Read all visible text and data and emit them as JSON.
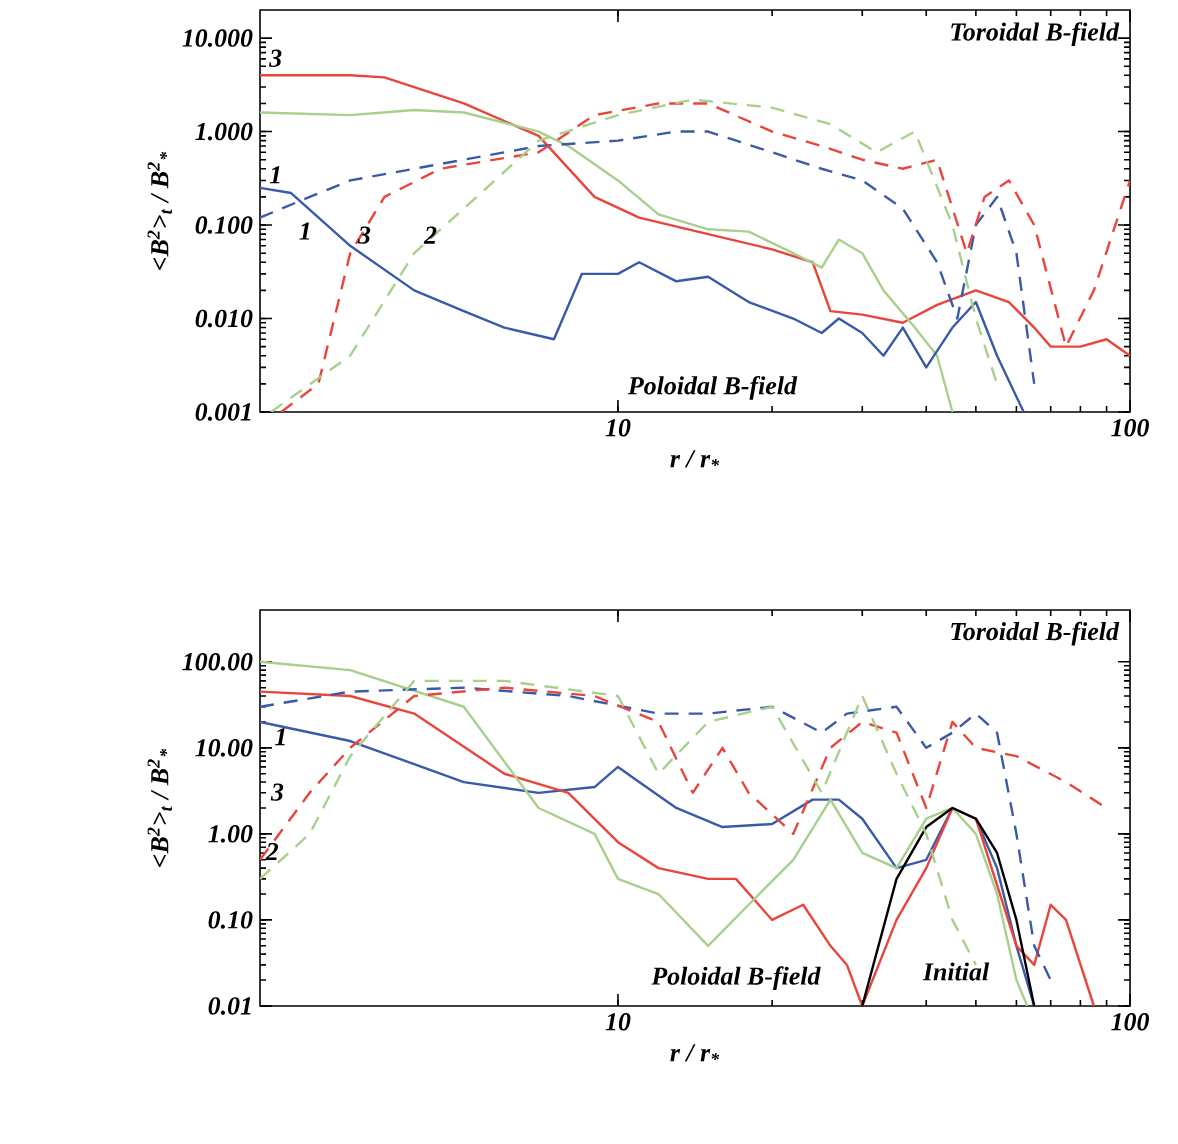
{
  "chart_data": [
    {
      "type": "line",
      "xlabel": "r / r$_{*}$",
      "ylabel": "<B$^{2}$>$_{t}$ / B$^{2}$$_{*}$",
      "log": "xy",
      "xlim": [
        2,
        100
      ],
      "ylim": [
        0.001,
        20
      ],
      "xticks": [
        10,
        100
      ],
      "yticks": [
        {
          "value": 0.001,
          "label": "0.001"
        },
        {
          "value": 0.01,
          "label": "0.010"
        },
        {
          "value": 0.1,
          "label": "0.100"
        },
        {
          "value": 1,
          "label": "1.000"
        },
        {
          "value": 10,
          "label": "10.000"
        }
      ],
      "series": [
        {
          "color": "#e8453c",
          "line_style": "solid",
          "x": [
            2,
            3,
            3.5,
            5,
            7,
            9,
            11,
            15,
            20,
            24,
            26,
            30,
            36,
            42,
            50,
            58,
            65,
            70,
            80,
            90,
            100
          ],
          "values": [
            4,
            4,
            3.8,
            2,
            0.9,
            0.2,
            0.12,
            0.08,
            0.055,
            0.04,
            0.012,
            0.011,
            0.009,
            0.014,
            0.02,
            0.015,
            0.008,
            0.005,
            0.005,
            0.006,
            0.004
          ]
        },
        {
          "color": "#a8d08d",
          "line_style": "solid",
          "x": [
            2,
            3,
            4,
            5,
            7,
            8,
            10,
            12,
            15,
            18,
            22,
            25,
            27,
            30,
            33,
            38,
            42,
            45
          ],
          "values": [
            1.6,
            1.5,
            1.7,
            1.6,
            1.0,
            0.7,
            0.3,
            0.13,
            0.09,
            0.085,
            0.05,
            0.035,
            0.07,
            0.05,
            0.02,
            0.008,
            0.004,
            0.001
          ]
        },
        {
          "color": "#3a5aa8",
          "line_style": "solid",
          "x": [
            2,
            2.3,
            3,
            4,
            5,
            6,
            7.5,
            8.5,
            10,
            11,
            13,
            15,
            18,
            22,
            25,
            27,
            30,
            33,
            36,
            40,
            45,
            50,
            55,
            62
          ],
          "values": [
            0.25,
            0.22,
            0.06,
            0.02,
            0.012,
            0.008,
            0.006,
            0.03,
            0.03,
            0.04,
            0.025,
            0.028,
            0.015,
            0.01,
            0.007,
            0.01,
            0.007,
            0.004,
            0.008,
            0.003,
            0.008,
            0.015,
            0.004,
            0.001
          ]
        },
        {
          "color": "#3a5aa8",
          "line_style": "dashed",
          "x": [
            2,
            2.5,
            3,
            5,
            7,
            10,
            13,
            15,
            20,
            25,
            30,
            36,
            42,
            46,
            50,
            55,
            60,
            65
          ],
          "values": [
            0.12,
            0.2,
            0.3,
            0.5,
            0.7,
            0.8,
            1.0,
            1.0,
            0.6,
            0.4,
            0.3,
            0.15,
            0.04,
            0.01,
            0.1,
            0.2,
            0.05,
            0.002
          ]
        },
        {
          "color": "#e8453c",
          "line_style": "dashed",
          "x": [
            2.2,
            2.6,
            3,
            3.5,
            4.5,
            7,
            9,
            12,
            15,
            20,
            25,
            30,
            36,
            42,
            48,
            52,
            58,
            65,
            75,
            85,
            100
          ],
          "values": [
            0.001,
            0.002,
            0.05,
            0.2,
            0.4,
            0.6,
            1.5,
            2.0,
            2.0,
            1.0,
            0.7,
            0.5,
            0.4,
            0.5,
            0.05,
            0.2,
            0.3,
            0.1,
            0.005,
            0.02,
            0.3
          ]
        },
        {
          "color": "#a8d08d",
          "line_style": "dashed",
          "x": [
            2.1,
            3,
            4,
            5,
            7,
            10,
            14,
            20,
            26,
            32,
            38,
            45,
            50,
            55
          ],
          "values": [
            0.001,
            0.004,
            0.05,
            0.15,
            0.8,
            1.5,
            2.2,
            1.8,
            1.2,
            0.6,
            1.0,
            0.1,
            0.01,
            0.002
          ]
        }
      ],
      "annotations": [
        "Toroidal B-field",
        "Poloidal B-field",
        "3",
        "1",
        "1",
        "3",
        "2"
      ]
    },
    {
      "type": "line",
      "xlabel": "r / r$_{*}$",
      "ylabel": "<B$^{2}$>$_{t}$ / B$^{2}$$_{*}$",
      "log": "xy",
      "xlim": [
        2,
        100
      ],
      "ylim": [
        0.01,
        400
      ],
      "xticks": [
        10,
        100
      ],
      "yticks": [
        {
          "value": 0.01,
          "label": "0.01"
        },
        {
          "value": 0.1,
          "label": "0.10"
        },
        {
          "value": 1,
          "label": "1.00"
        },
        {
          "value": 10,
          "label": "10.00"
        },
        {
          "value": 100,
          "label": "100.00"
        }
      ],
      "series": [
        {
          "color": "#3a5aa8",
          "line_style": "solid",
          "x": [
            2,
            3,
            5,
            7,
            9,
            10,
            11,
            13,
            16,
            20,
            24,
            27,
            30,
            35,
            40,
            45,
            50,
            55,
            60,
            65
          ],
          "values": [
            20,
            12,
            4,
            3,
            3.5,
            6,
            4,
            2,
            1.2,
            1.3,
            2.5,
            2.5,
            1.5,
            0.4,
            0.5,
            2,
            1.5,
            0.4,
            0.05,
            0.01
          ]
        },
        {
          "color": "#e8453c",
          "line_style": "solid",
          "x": [
            2,
            3,
            4,
            6,
            8,
            10,
            12,
            15,
            17,
            20,
            23,
            26,
            28,
            30,
            35,
            40,
            45,
            50,
            60,
            65,
            70,
            75,
            85
          ],
          "values": [
            45,
            40,
            25,
            5,
            3,
            0.8,
            0.4,
            0.3,
            0.3,
            0.1,
            0.15,
            0.05,
            0.03,
            0.01,
            0.1,
            0.4,
            2,
            1.5,
            0.05,
            0.03,
            0.15,
            0.1,
            0.01
          ]
        },
        {
          "color": "#a8d08d",
          "line_style": "solid",
          "x": [
            2,
            3,
            5,
            7,
            9,
            10,
            12,
            15,
            18,
            22,
            26,
            30,
            35,
            40,
            45,
            50,
            55,
            60,
            63
          ],
          "values": [
            100,
            80,
            30,
            2,
            1.0,
            0.3,
            0.2,
            0.05,
            0.15,
            0.5,
            2.5,
            0.6,
            0.4,
            1.5,
            2,
            1,
            0.2,
            0.02,
            0.01
          ]
        },
        {
          "color": "#000000",
          "line_style": "solid",
          "x": [
            30,
            35,
            40,
            45,
            50,
            55,
            60,
            65
          ],
          "values": [
            0.01,
            0.3,
            1.2,
            2,
            1.5,
            0.6,
            0.1,
            0.01
          ]
        },
        {
          "color": "#3a5aa8",
          "line_style": "dashed",
          "x": [
            2,
            3,
            5,
            8,
            12,
            15,
            20,
            25,
            28,
            35,
            40,
            45,
            50,
            55,
            60,
            65,
            70
          ],
          "values": [
            30,
            45,
            50,
            40,
            25,
            25,
            30,
            15,
            25,
            30,
            10,
            15,
            25,
            15,
            1,
            0.05,
            0.02
          ]
        },
        {
          "color": "#e8453c",
          "line_style": "dashed",
          "x": [
            2,
            2.5,
            3,
            4,
            6,
            9,
            12,
            14,
            16,
            18,
            22,
            26,
            30,
            35,
            40,
            45,
            50,
            60,
            75,
            90
          ],
          "values": [
            0.5,
            3,
            10,
            40,
            50,
            40,
            20,
            3,
            10,
            3,
            1,
            10,
            20,
            15,
            2,
            20,
            10,
            8,
            4,
            2
          ]
        },
        {
          "color": "#a8d08d",
          "line_style": "dashed",
          "x": [
            2,
            2.5,
            3,
            4,
            6,
            10,
            12,
            15,
            20,
            25,
            30,
            35,
            40,
            45,
            50
          ],
          "values": [
            0.3,
            1,
            8,
            60,
            60,
            40,
            5,
            20,
            30,
            3,
            40,
            5,
            1,
            0.1,
            0.03
          ]
        }
      ],
      "annotations": [
        "Toroidal B-field",
        "Poloidal B-field",
        "Initial",
        "1",
        "3",
        "2"
      ]
    }
  ]
}
